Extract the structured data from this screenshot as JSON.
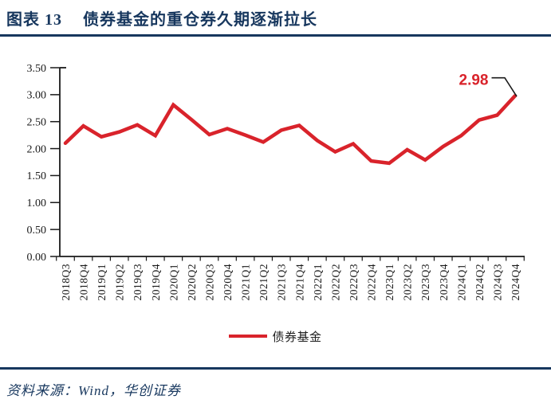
{
  "header": {
    "figure_label": "图表 13",
    "title": "债券基金的重仓券久期逐渐拉长"
  },
  "chart_data": {
    "type": "line",
    "title": "",
    "xlabel": "",
    "ylabel": "",
    "categories": [
      "2018Q3",
      "2018Q4",
      "2019Q1",
      "2019Q2",
      "2019Q3",
      "2019Q4",
      "2020Q1",
      "2020Q2",
      "2020Q3",
      "2020Q4",
      "2021Q1",
      "2021Q2",
      "2021Q3",
      "2021Q4",
      "2022Q1",
      "2022Q2",
      "2022Q3",
      "2022Q4",
      "2023Q1",
      "2023Q2",
      "2023Q3",
      "2023Q4",
      "2024Q1",
      "2024Q2",
      "2024Q3",
      "2024Q4"
    ],
    "series": [
      {
        "name": "债券基金",
        "color": "#D9232B",
        "values": [
          2.1,
          2.42,
          2.22,
          2.31,
          2.44,
          2.24,
          2.81,
          2.54,
          2.26,
          2.37,
          2.25,
          2.12,
          2.34,
          2.43,
          2.15,
          1.94,
          2.09,
          1.77,
          1.73,
          1.98,
          1.79,
          2.04,
          2.24,
          2.53,
          2.62,
          2.98
        ]
      }
    ],
    "ylim": [
      0,
      3.5
    ],
    "ytick_step": 0.5,
    "ytick_labels": [
      "0.00",
      "0.50",
      "1.00",
      "1.50",
      "2.00",
      "2.50",
      "3.00",
      "3.50"
    ],
    "grid": false,
    "legend_position": "bottom",
    "annotation": {
      "text": "2.98",
      "category": "2024Q4",
      "value": 2.98
    }
  },
  "footer": {
    "source": "资料来源：Wind，华创证券"
  },
  "colors": {
    "navy": "#17375E",
    "red": "#D9232B",
    "axis": "#1A1A1A"
  }
}
